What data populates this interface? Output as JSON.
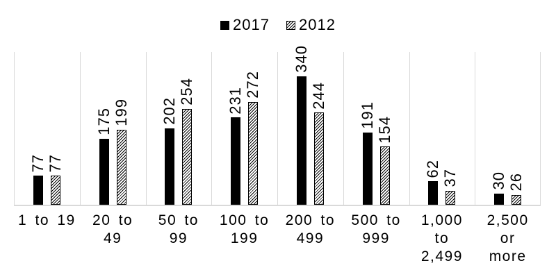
{
  "chart_data": {
    "type": "bar",
    "title": "",
    "xlabel": "",
    "ylabel": "",
    "categories": [
      "1 to 19",
      "20 to 49",
      "50 to 99",
      "100 to 199",
      "200 to 499",
      "500 to 999",
      "1,000 to 2,499",
      "2,500 or more"
    ],
    "categories_display": [
      "1 to 19",
      "20 to\n49",
      "50 to\n99",
      "100 to\n199",
      "200 to\n499",
      "500 to\n999",
      "1,000\nto\n2,499",
      "2,500\nor\nmore"
    ],
    "series": [
      {
        "name": "2017",
        "style": "solid",
        "color": "#000000",
        "values": [
          77,
          175,
          202,
          231,
          340,
          191,
          62,
          30
        ]
      },
      {
        "name": "2012",
        "style": "hatched",
        "color": "#000000",
        "values": [
          77,
          199,
          254,
          272,
          244,
          154,
          37,
          26
        ]
      }
    ],
    "ylim": [
      0,
      340
    ],
    "y_axis_visible": false,
    "data_labels": "rotated-90-above-bars",
    "grid": "vertical-category-separators",
    "gridline_color": "#d9d9d9",
    "axis_line_color": "#d9d9d9",
    "legend_position": "top-center"
  },
  "legend": {
    "items": [
      {
        "label": "2017",
        "marker": "solid-black-square"
      },
      {
        "label": "2012",
        "marker": "hatched-square"
      }
    ]
  }
}
